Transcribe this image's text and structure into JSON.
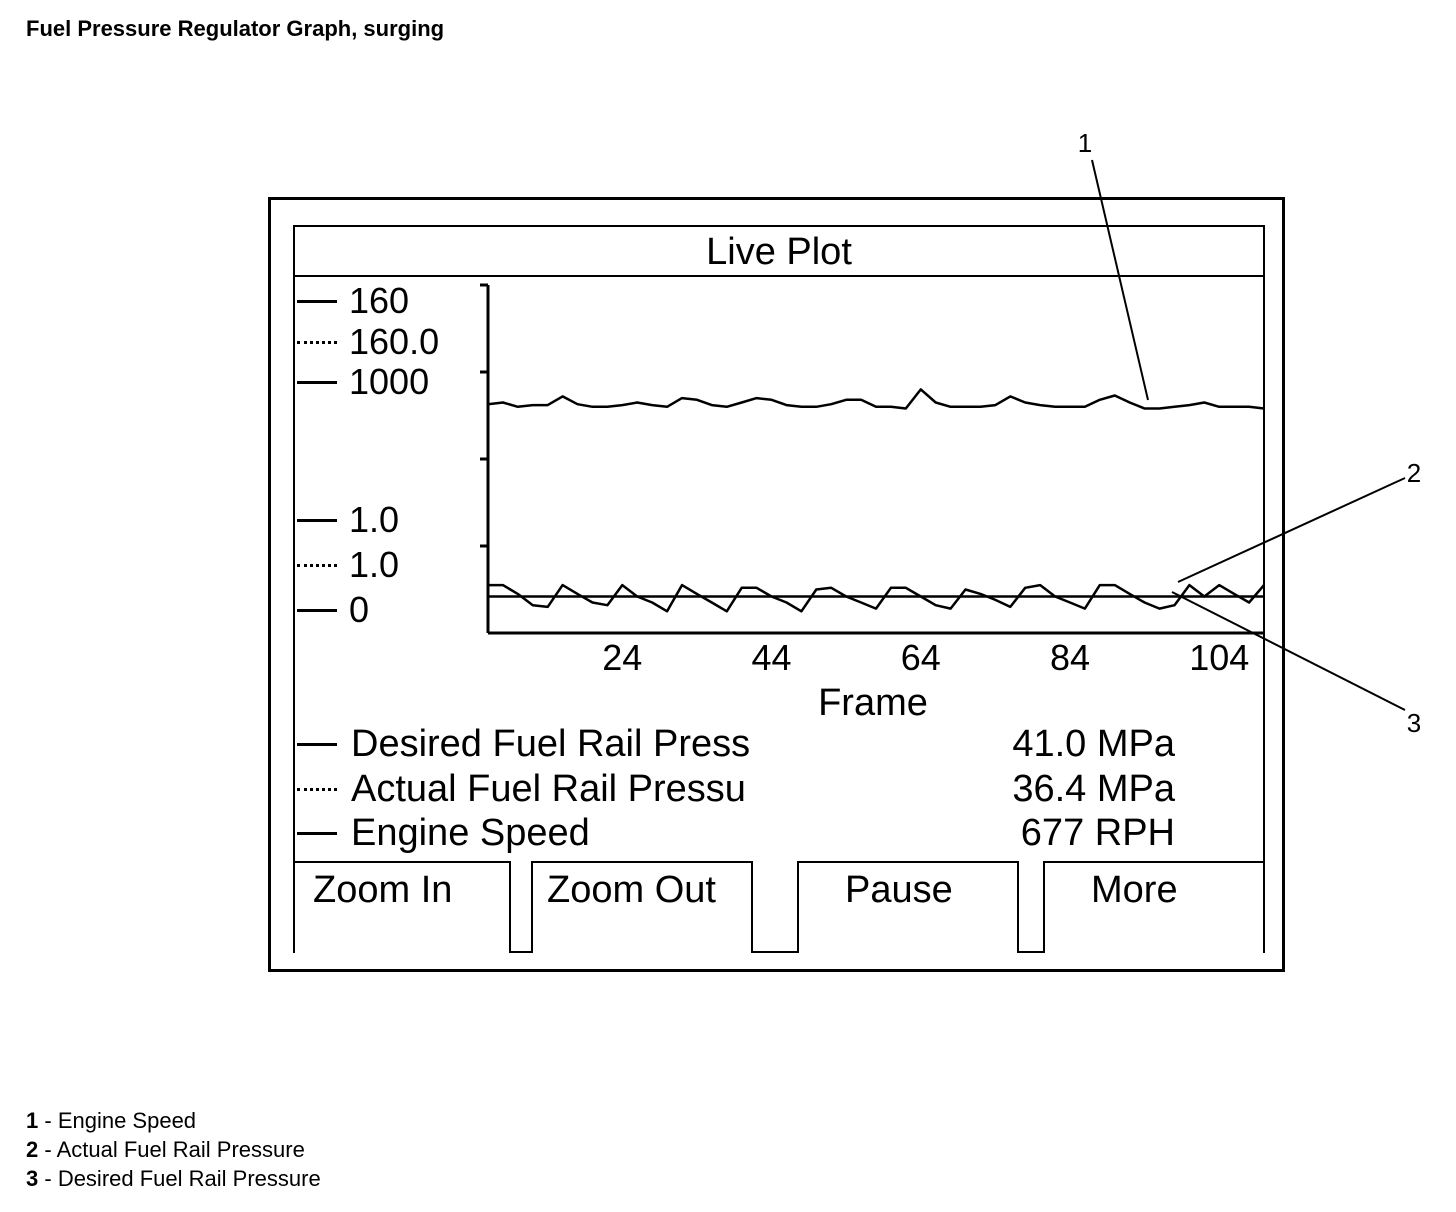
{
  "page_title": "Fuel Pressure Regulator Graph, surging",
  "screen": {
    "title": "Live Plot",
    "scale_labels": [
      {
        "value": "160",
        "style": "solid"
      },
      {
        "value": "160.0",
        "style": "dotted"
      },
      {
        "value": "1000",
        "style": "solid"
      },
      {
        "value": "1.0",
        "style": "solid"
      },
      {
        "value": "1.0",
        "style": "dotted"
      },
      {
        "value": "0",
        "style": "solid"
      }
    ],
    "x_axis_label": "Frame",
    "legend": [
      {
        "name": "Desired Fuel Rail Press",
        "value": "41.0 MPa",
        "style": "solid"
      },
      {
        "name": "Actual Fuel Rail Pressu",
        "value": "36.4 MPa",
        "style": "dotted"
      },
      {
        "name": "Engine Speed",
        "value": "677 RPH",
        "style": "solid"
      }
    ],
    "softkeys": {
      "zoom_in": "Zoom In",
      "zoom_out": "Zoom Out",
      "pause": "Pause",
      "more": "More"
    }
  },
  "callouts": [
    "1",
    "2",
    "3"
  ],
  "footnotes": [
    {
      "num": "1",
      "sep": " - ",
      "text": "Engine Speed"
    },
    {
      "num": "2",
      "sep": " - ",
      "text": "Actual Fuel Rail Pressure"
    },
    {
      "num": "3",
      "sep": " - ",
      "text": "Desired Fuel Rail Pressure"
    }
  ],
  "chart_data": {
    "type": "line",
    "xlabel": "Frame",
    "x_ticks": [
      24,
      44,
      64,
      84,
      104
    ],
    "xlim": [
      6,
      110
    ],
    "ylim": [
      0,
      4
    ],
    "x": [
      6,
      8,
      10,
      12,
      14,
      16,
      18,
      20,
      22,
      24,
      26,
      28,
      30,
      32,
      34,
      36,
      38,
      40,
      42,
      44,
      46,
      48,
      50,
      52,
      54,
      56,
      58,
      60,
      62,
      64,
      66,
      68,
      70,
      72,
      74,
      76,
      78,
      80,
      82,
      84,
      86,
      88,
      90,
      92,
      94,
      96,
      98,
      100,
      102,
      104,
      106,
      108,
      110
    ],
    "series": [
      {
        "name": "Engine Speed",
        "style": "solid",
        "values": [
          2.63,
          2.65,
          2.6,
          2.62,
          2.62,
          2.72,
          2.63,
          2.6,
          2.6,
          2.62,
          2.65,
          2.62,
          2.6,
          2.7,
          2.68,
          2.62,
          2.6,
          2.65,
          2.7,
          2.68,
          2.62,
          2.6,
          2.6,
          2.63,
          2.68,
          2.68,
          2.6,
          2.6,
          2.58,
          2.8,
          2.65,
          2.6,
          2.6,
          2.6,
          2.62,
          2.72,
          2.65,
          2.62,
          2.6,
          2.6,
          2.6,
          2.68,
          2.73,
          2.65,
          2.58,
          2.58,
          2.6,
          2.62,
          2.65,
          2.6,
          2.6,
          2.6,
          2.58
        ]
      },
      {
        "name": "Actual Fuel Rail Pressure",
        "style": "dotted",
        "values": [
          0.55,
          0.55,
          0.45,
          0.32,
          0.3,
          0.55,
          0.45,
          0.35,
          0.32,
          0.55,
          0.42,
          0.35,
          0.25,
          0.55,
          0.45,
          0.35,
          0.25,
          0.52,
          0.52,
          0.42,
          0.35,
          0.25,
          0.5,
          0.52,
          0.42,
          0.35,
          0.28,
          0.52,
          0.52,
          0.42,
          0.32,
          0.28,
          0.5,
          0.45,
          0.38,
          0.3,
          0.52,
          0.55,
          0.42,
          0.35,
          0.28,
          0.55,
          0.55,
          0.45,
          0.35,
          0.28,
          0.32,
          0.55,
          0.42,
          0.55,
          0.45,
          0.35,
          0.55
        ]
      },
      {
        "name": "Desired Fuel Rail Pressure",
        "style": "solid",
        "values": [
          0.42,
          0.42,
          0.42,
          0.42,
          0.42,
          0.42,
          0.42,
          0.42,
          0.42,
          0.42,
          0.42,
          0.42,
          0.42,
          0.42,
          0.42,
          0.42,
          0.42,
          0.42,
          0.42,
          0.42,
          0.42,
          0.42,
          0.42,
          0.42,
          0.42,
          0.42,
          0.42,
          0.42,
          0.42,
          0.42,
          0.42,
          0.42,
          0.42,
          0.42,
          0.42,
          0.42,
          0.42,
          0.42,
          0.42,
          0.42,
          0.42,
          0.42,
          0.42,
          0.42,
          0.42,
          0.42,
          0.42,
          0.42,
          0.42,
          0.42,
          0.42,
          0.42,
          0.42
        ]
      }
    ]
  }
}
